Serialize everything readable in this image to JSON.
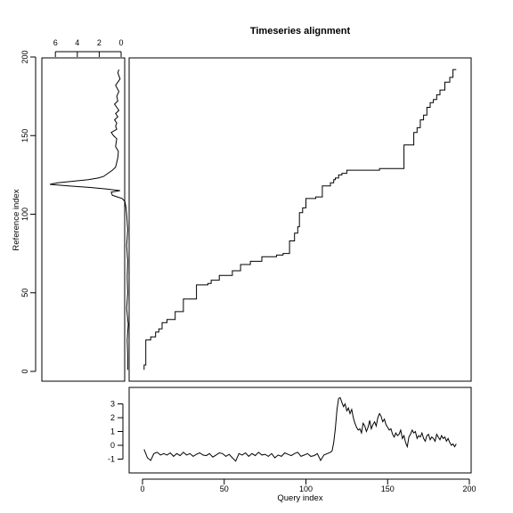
{
  "chart_data": [
    {
      "panel": "main",
      "type": "line",
      "title": "Timeseries alignment",
      "series": [
        {
          "x": [
            1,
            1,
            2,
            2,
            5,
            5,
            8,
            8,
            10,
            10,
            12,
            12,
            15,
            15,
            20,
            20,
            25,
            25,
            33,
            33,
            40,
            40,
            42,
            42,
            47,
            47,
            55,
            55,
            60,
            60,
            66,
            66,
            73,
            73,
            82,
            82,
            86,
            86,
            90,
            90,
            93,
            93,
            95,
            95,
            96,
            96,
            98,
            98,
            100,
            100,
            106,
            106,
            110,
            110,
            115,
            115,
            117,
            117,
            118,
            118,
            120,
            120,
            122,
            122,
            125,
            125,
            145,
            145,
            160,
            160,
            166,
            166,
            168,
            168,
            170,
            170,
            172,
            172,
            174,
            174,
            176,
            176,
            178,
            178,
            180,
            180,
            182,
            182,
            185,
            185,
            188,
            188,
            190,
            190,
            192
          ],
          "y": [
            1,
            4,
            4,
            20,
            20,
            22,
            22,
            25,
            25,
            27,
            27,
            31,
            31,
            33,
            33,
            38,
            38,
            46,
            46,
            55,
            55,
            56,
            56,
            58,
            58,
            61,
            61,
            64,
            64,
            68,
            68,
            70,
            70,
            73,
            73,
            74,
            74,
            75,
            75,
            83,
            83,
            88,
            88,
            92,
            92,
            101,
            101,
            104,
            104,
            110,
            110,
            111,
            111,
            118,
            118,
            120,
            120,
            122,
            122,
            123,
            123,
            125,
            125,
            126,
            126,
            128,
            128,
            129,
            129,
            144,
            144,
            152,
            152,
            155,
            155,
            160,
            160,
            163,
            163,
            168,
            168,
            171,
            171,
            173,
            173,
            176,
            176,
            179,
            179,
            184,
            184,
            187,
            187,
            192,
            192
          ]
        }
      ],
      "xlim": [
        0,
        200
      ],
      "ylim": [
        0,
        200
      ],
      "ylabel": "Reference index",
      "yticks": [
        "0",
        "50",
        "100",
        "150",
        "200"
      ]
    },
    {
      "panel": "reference-series",
      "type": "line",
      "orientation": "vertical",
      "xticks": [
        "6",
        "4",
        "2",
        "0"
      ],
      "xlim_reversed": [
        7,
        0
      ],
      "series": [
        {
          "y": [
            1,
            10,
            20,
            30,
            40,
            50,
            60,
            70,
            80,
            90,
            100,
            104,
            108,
            110,
            112,
            114,
            115,
            116,
            117,
            118,
            119,
            120,
            121,
            122,
            123,
            124,
            126,
            128,
            130,
            133,
            136,
            140,
            143,
            146,
            148,
            150,
            152,
            154,
            156,
            158,
            160,
            162,
            164,
            166,
            168,
            170,
            172,
            175,
            178,
            182,
            186,
            190,
            192
          ],
          "value": [
            -0.6,
            -0.6,
            -0.55,
            -0.65,
            -0.5,
            -0.6,
            -0.55,
            -0.6,
            -0.5,
            -0.6,
            -0.5,
            -0.45,
            -0.35,
            -0.1,
            0.8,
            0.9,
            0.1,
            1.3,
            2.8,
            4.8,
            6.5,
            5.8,
            4.3,
            3.0,
            2.1,
            1.6,
            1.2,
            0.8,
            0.5,
            0.4,
            0.3,
            0.25,
            0.5,
            0.45,
            0.4,
            0.7,
            0.9,
            0.4,
            0.5,
            0.4,
            0.6,
            0.3,
            0.5,
            0.2,
            0.4,
            0.6,
            0.3,
            0.4,
            0.2,
            0.5,
            0.1,
            0.3,
            0.2
          ]
        }
      ]
    },
    {
      "panel": "query-series",
      "type": "line",
      "xlabel": "Query index",
      "xlim": [
        0,
        200
      ],
      "ylim": [
        -1.4,
        3.6
      ],
      "xticks": [
        "0",
        "50",
        "100",
        "150",
        "200"
      ],
      "yticks": [
        "-1",
        "0",
        "1",
        "2",
        "3"
      ],
      "series": [
        {
          "x": [
            1,
            3,
            5,
            7,
            9,
            11,
            13,
            15,
            17,
            19,
            21,
            23,
            25,
            27,
            29,
            31,
            33,
            35,
            37,
            39,
            41,
            43,
            45,
            47,
            49,
            51,
            53,
            55,
            57,
            59,
            61,
            63,
            65,
            67,
            69,
            71,
            73,
            75,
            77,
            79,
            81,
            83,
            85,
            87,
            89,
            91,
            93,
            95,
            97,
            99,
            101,
            103,
            105,
            107,
            109,
            111,
            113,
            115,
            116,
            117,
            118,
            119,
            120,
            121,
            122,
            123,
            124,
            125,
            126,
            127,
            128,
            129,
            130,
            131,
            132,
            133,
            134,
            135,
            136,
            137,
            138,
            139,
            140,
            141,
            142,
            143,
            144,
            145,
            146,
            147,
            148,
            149,
            150,
            151,
            152,
            153,
            154,
            155,
            156,
            157,
            158,
            159,
            160,
            161,
            162,
            163,
            164,
            165,
            166,
            167,
            168,
            169,
            170,
            171,
            172,
            173,
            174,
            175,
            176,
            177,
            178,
            179,
            180,
            181,
            182,
            183,
            184,
            185,
            186,
            187,
            188,
            189,
            190,
            191,
            192
          ],
          "y": [
            -0.3,
            -0.9,
            -1.1,
            -0.6,
            -0.5,
            -0.7,
            -0.6,
            -0.7,
            -0.55,
            -0.8,
            -0.6,
            -0.75,
            -0.5,
            -0.7,
            -0.6,
            -0.8,
            -0.65,
            -0.55,
            -0.7,
            -0.75,
            -0.6,
            -0.85,
            -0.7,
            -0.55,
            -0.6,
            -0.8,
            -0.65,
            -0.9,
            -1.15,
            -0.6,
            -0.7,
            -0.55,
            -0.8,
            -0.6,
            -0.75,
            -0.5,
            -0.7,
            -0.65,
            -0.8,
            -0.6,
            -0.9,
            -0.7,
            -0.8,
            -0.55,
            -0.65,
            -0.75,
            -0.6,
            -0.5,
            -0.8,
            -0.7,
            -0.6,
            -0.8,
            -0.75,
            -0.6,
            -1.1,
            -0.7,
            -0.6,
            -0.5,
            -0.4,
            0.2,
            1.2,
            2.6,
            3.4,
            3.45,
            3.1,
            2.8,
            3.0,
            2.5,
            2.7,
            2.3,
            2.6,
            2.0,
            1.6,
            1.3,
            1.1,
            1.2,
            0.9,
            1.6,
            1.4,
            1.0,
            1.3,
            1.8,
            1.2,
            1.5,
            1.7,
            1.4,
            2.0,
            2.3,
            2.1,
            1.7,
            1.9,
            1.5,
            1.3,
            1.1,
            1.2,
            0.8,
            0.6,
            0.9,
            0.7,
            0.8,
            1.1,
            0.5,
            0.7,
            0.2,
            -0.1,
            0.6,
            0.8,
            1.1,
            0.9,
            1.0,
            0.5,
            0.7,
            0.6,
            0.9,
            0.5,
            0.3,
            0.7,
            0.8,
            0.4,
            0.6,
            0.5,
            0.3,
            0.8,
            0.6,
            0.4,
            0.7,
            0.5,
            0.6,
            0.3,
            0.5,
            0.2,
            0.0,
            0.1,
            -0.1,
            0.1
          ]
        }
      ]
    }
  ]
}
